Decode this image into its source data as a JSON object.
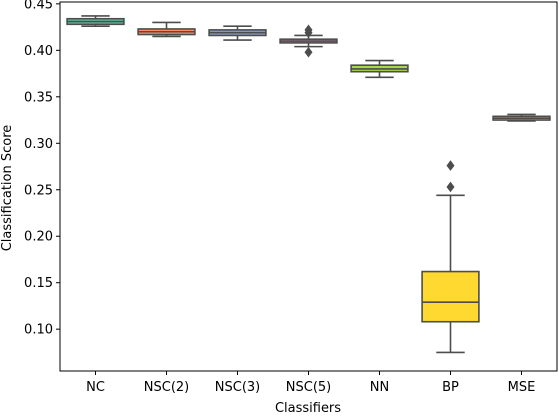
{
  "chart_data": {
    "type": "box",
    "title": "",
    "xlabel": "Classifiers",
    "ylabel": "Classification Score",
    "ylim": [
      0.055,
      0.452
    ],
    "yticks": [
      "0.10",
      "0.15",
      "0.20",
      "0.25",
      "0.30",
      "0.35",
      "0.40",
      "0.45"
    ],
    "grid": false,
    "legend": "none",
    "categories": [
      "NC",
      "NSC(2)",
      "NSC(3)",
      "NSC(5)",
      "NN",
      "BP",
      "MSE"
    ],
    "boxes": [
      {
        "category": "NC",
        "color": "#66c2a5",
        "whisker_low": 0.426,
        "q1": 0.428,
        "median": 0.431,
        "q3": 0.434,
        "whisker_high": 0.437,
        "outliers": []
      },
      {
        "category": "NSC(2)",
        "color": "#fc8d62",
        "whisker_low": 0.415,
        "q1": 0.417,
        "median": 0.42,
        "q3": 0.423,
        "whisker_high": 0.43,
        "outliers": []
      },
      {
        "category": "NSC(3)",
        "color": "#8da0cb",
        "whisker_low": 0.411,
        "q1": 0.416,
        "median": 0.419,
        "q3": 0.422,
        "whisker_high": 0.426,
        "outliers": []
      },
      {
        "category": "NSC(5)",
        "color": "#e78ac3",
        "whisker_low": 0.404,
        "q1": 0.408,
        "median": 0.41,
        "q3": 0.412,
        "whisker_high": 0.416,
        "outliers": [
          0.422,
          0.419,
          0.398
        ]
      },
      {
        "category": "NN",
        "color": "#a6d854",
        "whisker_low": 0.371,
        "q1": 0.377,
        "median": 0.38,
        "q3": 0.384,
        "whisker_high": 0.389,
        "outliers": []
      },
      {
        "category": "BP",
        "color": "#ffd92f",
        "whisker_low": 0.075,
        "q1": 0.108,
        "median": 0.129,
        "q3": 0.162,
        "whisker_high": 0.244,
        "outliers": [
          0.253,
          0.276
        ]
      },
      {
        "category": "MSE",
        "color": "#e5c494",
        "whisker_low": 0.324,
        "q1": 0.325,
        "median": 0.327,
        "q3": 0.329,
        "whisker_high": 0.331,
        "outliers": []
      }
    ]
  }
}
